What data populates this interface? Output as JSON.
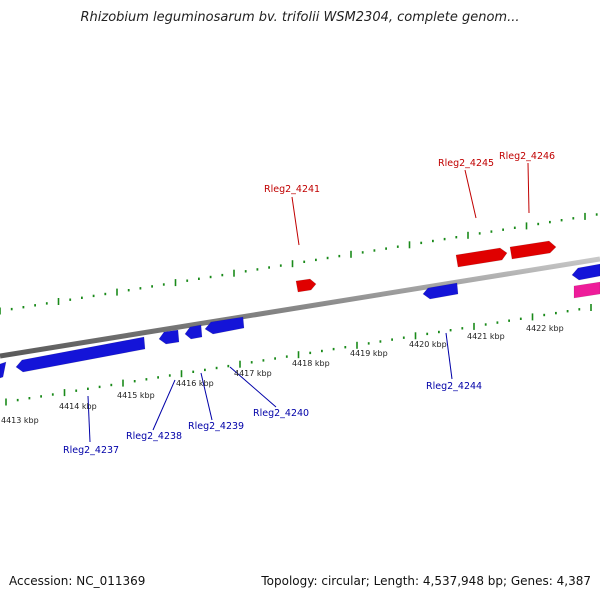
{
  "title": "Rhizobium leguminosarum bv. trifolii WSM2304, complete genom...",
  "footer": {
    "accession": "Accession: NC_011369",
    "stats": "Topology: circular; Length: 4,537,948 bp; Genes: 4,387"
  },
  "colors": {
    "forward_gene": "#e00000",
    "reverse_gene": "#1414d8",
    "other_gene": "#ee1c9a",
    "backbone": "#888888",
    "ticks": "#1a8a1a",
    "forward_label": "#c00000",
    "reverse_label": "#0000a8"
  },
  "kbp_labels": [
    "4413 kbp",
    "4414 kbp",
    "4415 kbp",
    "4416 kbp",
    "4417 kbp",
    "4418 kbp",
    "4419 kbp",
    "4420 kbp",
    "4421 kbp",
    "4422 kbp"
  ],
  "forward_gene_labels": [
    "Rleg2_4241",
    "Rleg2_4245",
    "Rleg2_4246"
  ],
  "reverse_gene_labels": [
    "Rleg2_4237",
    "Rleg2_4238",
    "Rleg2_4239",
    "Rleg2_4240",
    "Rleg2_4244"
  ]
}
